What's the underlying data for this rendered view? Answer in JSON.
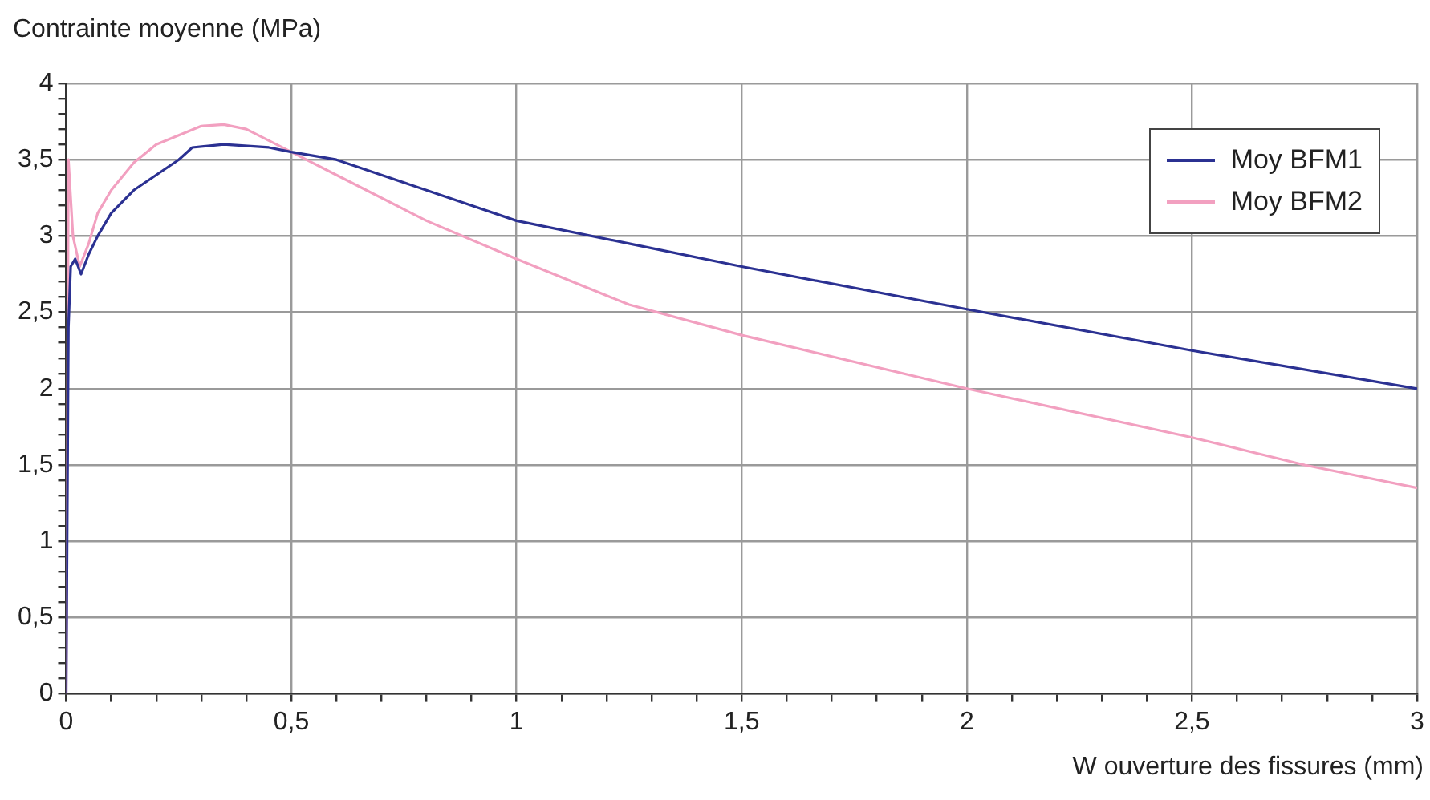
{
  "chart_data": {
    "type": "line",
    "xlabel": "W ouverture des fissures (mm)",
    "ylabel": "Contrainte moyenne (MPa)",
    "xlim": [
      0,
      3
    ],
    "ylim": [
      0,
      4
    ],
    "xticks": [
      0,
      {
        "value": 0.1,
        "label": null
      },
      {
        "value": 0.2,
        "label": null
      },
      {
        "value": 0.3,
        "label": null
      },
      {
        "value": 0.4,
        "label": null
      },
      {
        "value": 0.5,
        "label": "0,5"
      },
      {
        "value": 0.6,
        "label": null
      },
      {
        "value": 0.7,
        "label": null
      },
      {
        "value": 0.8,
        "label": null
      },
      {
        "value": 0.9,
        "label": null
      },
      1,
      {
        "value": 1.1,
        "label": null
      },
      {
        "value": 1.2,
        "label": null
      },
      {
        "value": 1.3,
        "label": null
      },
      {
        "value": 1.4,
        "label": null
      },
      {
        "value": 1.5,
        "label": "1,5"
      },
      {
        "value": 1.6,
        "label": null
      },
      {
        "value": 1.7,
        "label": null
      },
      {
        "value": 1.8,
        "label": null
      },
      {
        "value": 1.9,
        "label": null
      },
      2,
      {
        "value": 2.1,
        "label": null
      },
      {
        "value": 2.2,
        "label": null
      },
      {
        "value": 2.3,
        "label": null
      },
      {
        "value": 2.4,
        "label": null
      },
      {
        "value": 2.5,
        "label": "2,5"
      },
      {
        "value": 2.6,
        "label": null
      },
      {
        "value": 2.7,
        "label": null
      },
      {
        "value": 2.8,
        "label": null
      },
      {
        "value": 2.9,
        "label": null
      },
      3
    ],
    "yticks": [
      0,
      {
        "value": 0.1,
        "label": null
      },
      {
        "value": 0.2,
        "label": null
      },
      {
        "value": 0.3,
        "label": null
      },
      {
        "value": 0.4,
        "label": null
      },
      {
        "value": 0.5,
        "label": "0,5"
      },
      {
        "value": 0.6,
        "label": null
      },
      {
        "value": 0.7,
        "label": null
      },
      {
        "value": 0.8,
        "label": null
      },
      {
        "value": 0.9,
        "label": null
      },
      1,
      {
        "value": 1.1,
        "label": null
      },
      {
        "value": 1.2,
        "label": null
      },
      {
        "value": 1.3,
        "label": null
      },
      {
        "value": 1.4,
        "label": null
      },
      {
        "value": 1.5,
        "label": "1,5"
      },
      {
        "value": 1.6,
        "label": null
      },
      {
        "value": 1.7,
        "label": null
      },
      {
        "value": 1.8,
        "label": null
      },
      {
        "value": 1.9,
        "label": null
      },
      2,
      {
        "value": 2.1,
        "label": null
      },
      {
        "value": 2.2,
        "label": null
      },
      {
        "value": 2.3,
        "label": null
      },
      {
        "value": 2.4,
        "label": null
      },
      {
        "value": 2.5,
        "label": "2,5"
      },
      {
        "value": 2.6,
        "label": null
      },
      {
        "value": 2.7,
        "label": null
      },
      {
        "value": 2.8,
        "label": null
      },
      {
        "value": 2.9,
        "label": null
      },
      3,
      {
        "value": 3.1,
        "label": null
      },
      {
        "value": 3.2,
        "label": null
      },
      {
        "value": 3.3,
        "label": null
      },
      {
        "value": 3.4,
        "label": null
      },
      {
        "value": 3.5,
        "label": "3,5"
      },
      {
        "value": 3.6,
        "label": null
      },
      {
        "value": 3.7,
        "label": null
      },
      {
        "value": 3.8,
        "label": null
      },
      {
        "value": 3.9,
        "label": null
      },
      4
    ],
    "grid": true,
    "legend": "top right",
    "marker": "none",
    "line_style": "solid",
    "series": [
      {
        "name": "Moy BFM1",
        "color": "#2b3192",
        "x": [
          0,
          0.005,
          0.01,
          0.02,
          0.033,
          0.05,
          0.07,
          0.1,
          0.15,
          0.2,
          0.25,
          0.28,
          0.35,
          0.45,
          0.5,
          0.6,
          0.7,
          0.8,
          1.0,
          1.25,
          1.5,
          2.0,
          2.5,
          3.0
        ],
        "values": [
          0,
          2.4,
          2.8,
          2.85,
          2.75,
          2.88,
          3.0,
          3.15,
          3.3,
          3.4,
          3.5,
          3.58,
          3.6,
          3.58,
          3.55,
          3.5,
          3.4,
          3.3,
          3.1,
          2.95,
          2.8,
          2.52,
          2.25,
          2.0
        ]
      },
      {
        "name": "Moy BFM2",
        "color": "#f2a0c0",
        "x": [
          0,
          0.005,
          0.015,
          0.03,
          0.05,
          0.07,
          0.1,
          0.15,
          0.2,
          0.3,
          0.35,
          0.4,
          0.5,
          0.6,
          0.8,
          1.0,
          1.25,
          1.5,
          2.0,
          2.5,
          2.75,
          3.0
        ],
        "values": [
          0,
          3.5,
          3.0,
          2.8,
          2.95,
          3.15,
          3.3,
          3.48,
          3.6,
          3.72,
          3.73,
          3.7,
          3.55,
          3.4,
          3.1,
          2.85,
          2.55,
          2.35,
          2.0,
          1.68,
          1.5,
          1.35
        ]
      }
    ]
  }
}
